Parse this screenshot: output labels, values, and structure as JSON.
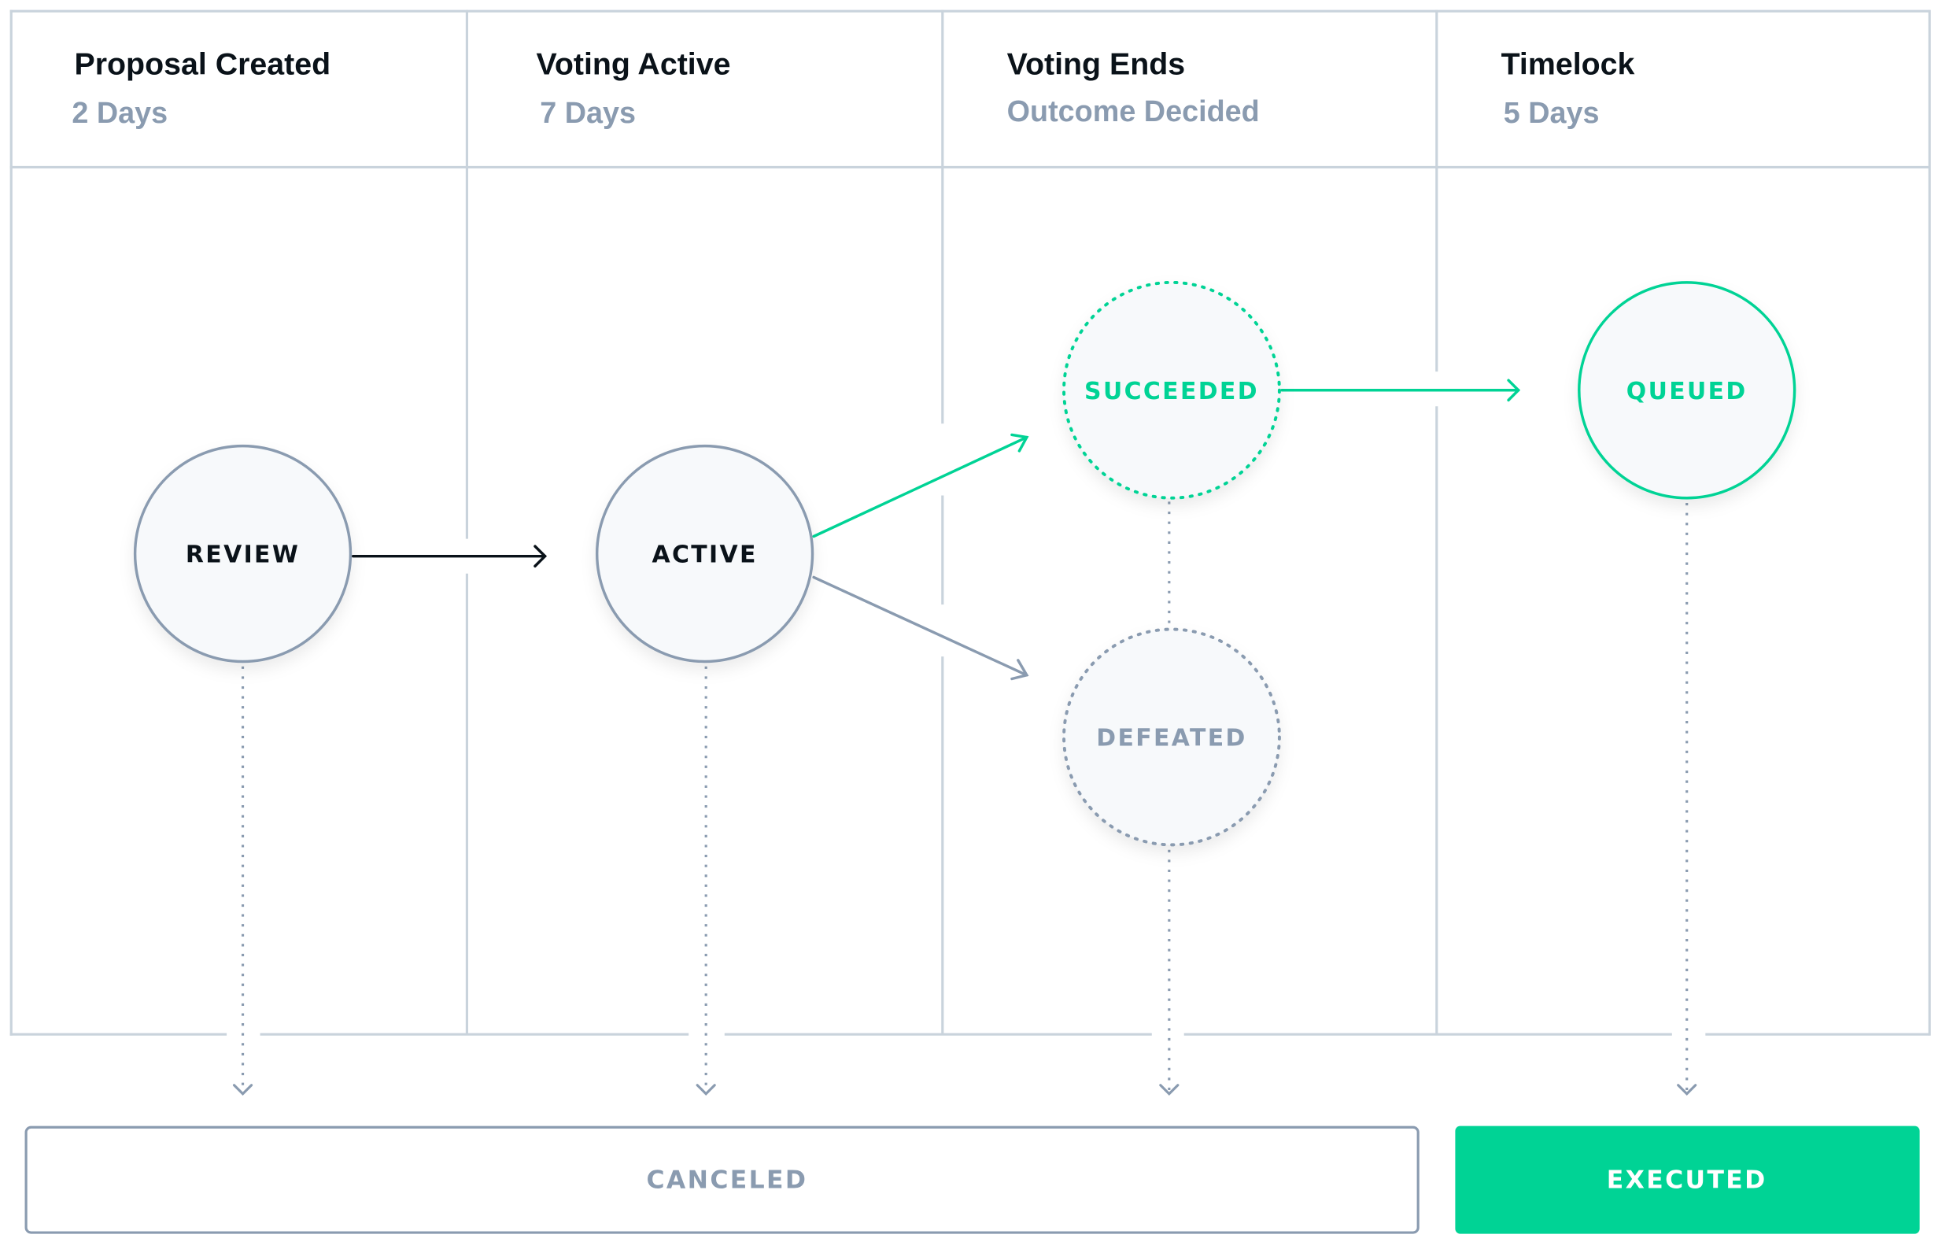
{
  "colors": {
    "accent_green": "#00d395",
    "muted_gray": "#8a9bb0",
    "dark_text": "#0a1219",
    "grid_line": "#c9d3dc",
    "node_fill": "#f7f9fb"
  },
  "columns": [
    {
      "title": "Proposal Created",
      "subtitle": "2 Days"
    },
    {
      "title": "Voting Active",
      "subtitle": "7 Days"
    },
    {
      "title": "Voting Ends",
      "subtitle": "Outcome Decided"
    },
    {
      "title": "Timelock",
      "subtitle": "5 Days"
    }
  ],
  "nodes": {
    "review": "REVIEW",
    "active": "ACTIVE",
    "succeeded": "SUCCEEDED",
    "defeated": "DEFEATED",
    "queued": "QUEUED"
  },
  "outcomes": {
    "canceled": "CANCELED",
    "executed": "EXECUTED"
  }
}
